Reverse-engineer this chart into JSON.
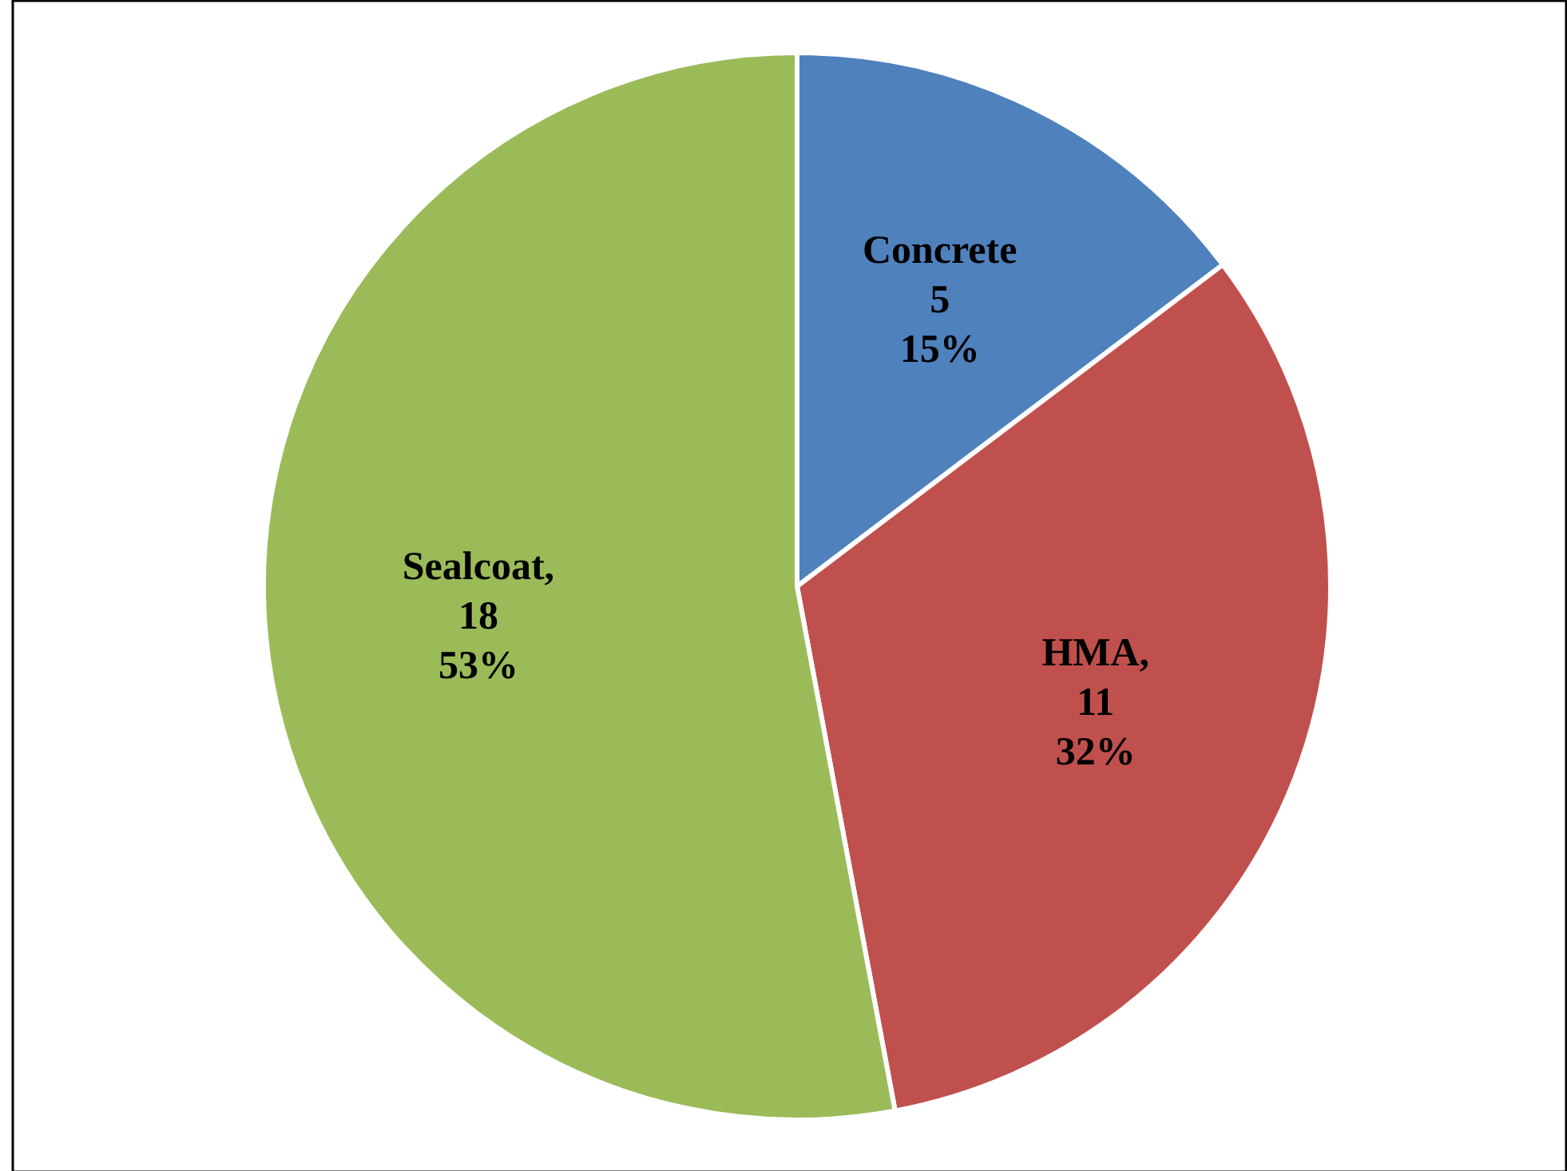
{
  "chart_data": {
    "type": "pie",
    "categories": [
      "Concrete",
      "HMA",
      "Sealcoat"
    ],
    "values": [
      5,
      11,
      18
    ],
    "colors": [
      "#4f81bd",
      "#c0504d",
      "#9bbb59"
    ],
    "value_labels": [
      "\n5\n15%",
      ",\n11\n32%",
      ",\n18\n53%"
    ]
  }
}
